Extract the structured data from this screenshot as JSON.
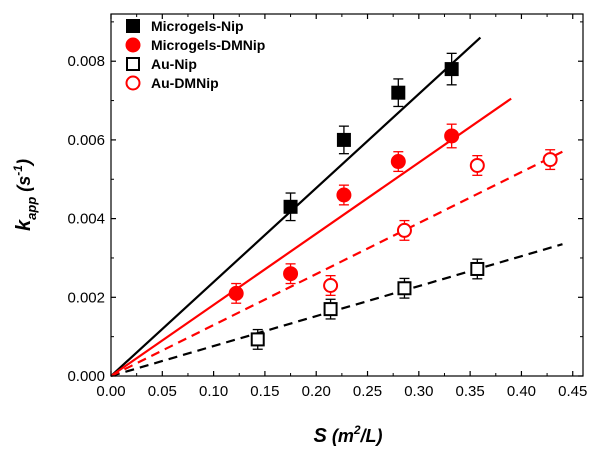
{
  "chart_data": {
    "type": "scatter",
    "title": "",
    "xlabel": {
      "base": "S",
      "open": " (",
      "unit": "m",
      "sup": "2",
      "close": "/L)"
    },
    "ylabel": {
      "base": "k",
      "sub": "app",
      "open": " (",
      "unit": "s",
      "sup": "-1",
      "close": ")"
    },
    "xlim": [
      0.0,
      0.46
    ],
    "ylim": [
      0.0,
      0.0092
    ],
    "xticks": [
      0.0,
      0.05,
      0.1,
      0.15,
      0.2,
      0.25,
      0.3,
      0.35,
      0.4,
      0.45
    ],
    "xtick_labels": [
      "0.00",
      "0.05",
      "0.10",
      "0.15",
      "0.20",
      "0.25",
      "0.30",
      "0.35",
      "0.40",
      "0.45"
    ],
    "yticks": [
      0.0,
      0.002,
      0.004,
      0.006,
      0.008
    ],
    "ytick_labels": [
      "0.000",
      "0.002",
      "0.004",
      "0.006",
      "0.008"
    ],
    "grid": false,
    "legend_position": "top-left",
    "series": [
      {
        "name": "Microgels-Nip",
        "color": "#000000",
        "marker": "square",
        "filled": true,
        "line_style": "solid",
        "x": [
          0.175,
          0.227,
          0.28,
          0.332
        ],
        "y": [
          0.0043,
          0.006,
          0.0072,
          0.0078
        ],
        "err": [
          0.00035,
          0.00035,
          0.00035,
          0.0004
        ],
        "fit": [
          [
            0.0,
            0.0
          ],
          [
            0.36,
            0.0086
          ]
        ]
      },
      {
        "name": "Microgels-DMNip",
        "color": "#ff0000",
        "marker": "circle",
        "filled": true,
        "line_style": "solid",
        "x": [
          0.122,
          0.175,
          0.227,
          0.28,
          0.332
        ],
        "y": [
          0.0021,
          0.0026,
          0.0046,
          0.00545,
          0.0061
        ],
        "err": [
          0.00025,
          0.00025,
          0.00025,
          0.00025,
          0.0003
        ],
        "fit": [
          [
            0.0,
            0.0
          ],
          [
            0.39,
            0.00705
          ]
        ]
      },
      {
        "name": "Au-Nip",
        "color": "#000000",
        "marker": "square",
        "filled": false,
        "line_style": "dashed",
        "x": [
          0.143,
          0.214,
          0.286,
          0.357
        ],
        "y": [
          0.00093,
          0.0017,
          0.00223,
          0.00272
        ],
        "err": [
          0.00025,
          0.00025,
          0.00025,
          0.00025
        ],
        "fit": [
          [
            0.0,
            0.0
          ],
          [
            0.44,
            0.00335
          ]
        ]
      },
      {
        "name": "Au-DMNip",
        "color": "#ff0000",
        "marker": "circle",
        "filled": false,
        "line_style": "dashed",
        "x": [
          0.214,
          0.286,
          0.357,
          0.428
        ],
        "y": [
          0.0023,
          0.0037,
          0.00535,
          0.0055
        ],
        "err": [
          0.00025,
          0.00025,
          0.00025,
          0.00025
        ],
        "fit": [
          [
            0.0,
            0.0
          ],
          [
            0.44,
            0.0057
          ]
        ]
      }
    ]
  }
}
